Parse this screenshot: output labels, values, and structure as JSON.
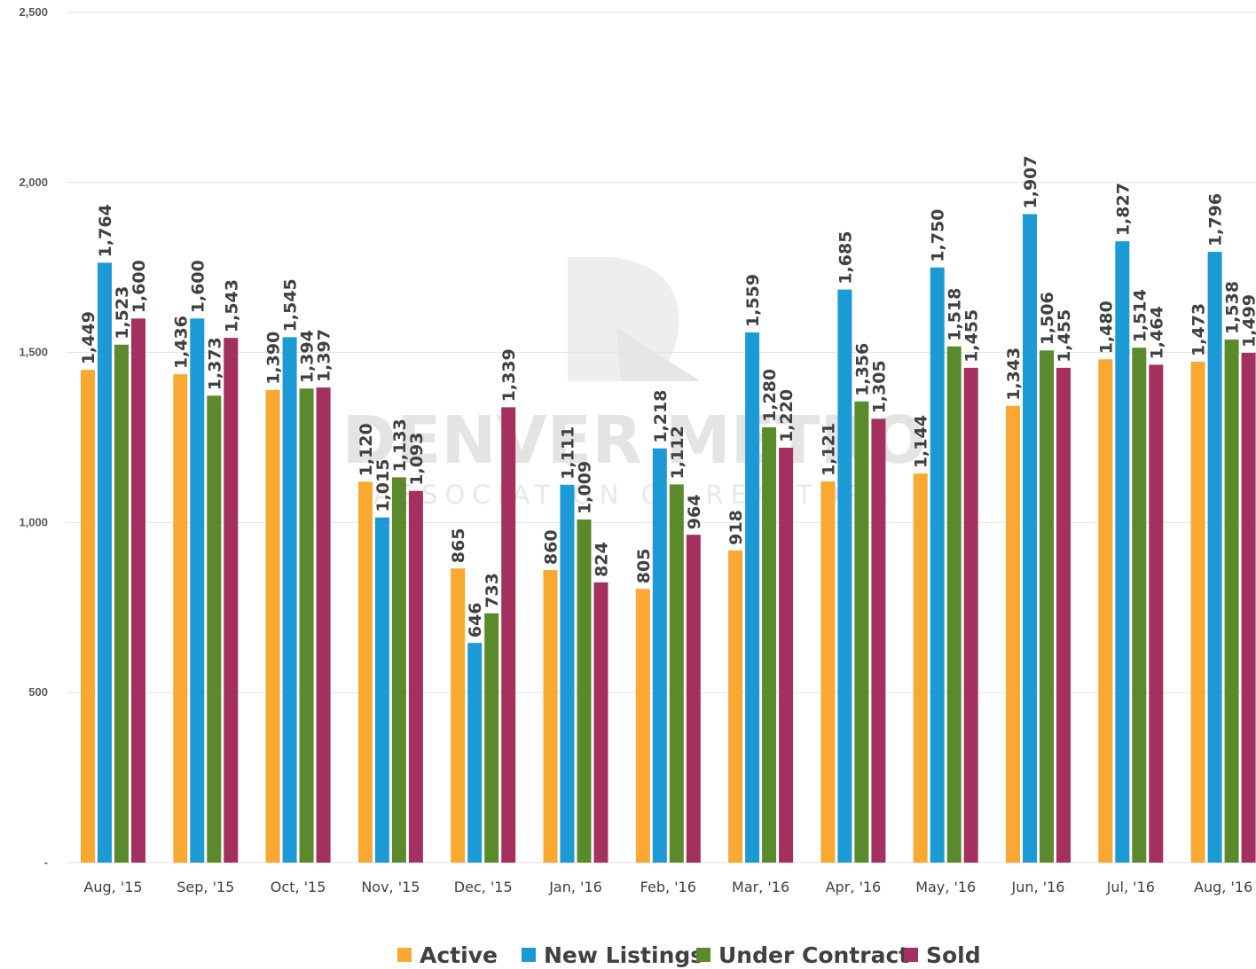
{
  "chart_data": {
    "type": "bar",
    "categories": [
      "Aug, '15",
      "Sep, '15",
      "Oct, '15",
      "Nov, '15",
      "Dec, '15",
      "Jan, '16",
      "Feb, '16",
      "Mar, '16",
      "Apr, '16",
      "May, '16",
      "Jun, '16",
      "Jul, '16",
      "Aug, '16"
    ],
    "series": [
      {
        "name": "Active",
        "color": "#f9a832",
        "values": [
          1449,
          1436,
          1390,
          1120,
          865,
          860,
          805,
          918,
          1121,
          1144,
          1343,
          1480,
          1473
        ]
      },
      {
        "name": "New Listings",
        "color": "#1c9ad6",
        "values": [
          1764,
          1600,
          1545,
          1015,
          646,
          1111,
          1218,
          1559,
          1685,
          1750,
          1907,
          1827,
          1796
        ]
      },
      {
        "name": "Under Contract",
        "color": "#5a8a2b",
        "values": [
          1523,
          1373,
          1394,
          1133,
          733,
          1009,
          1112,
          1280,
          1356,
          1518,
          1506,
          1514,
          1538
        ]
      },
      {
        "name": "Sold",
        "color": "#a3305f",
        "values": [
          1600,
          1543,
          1397,
          1093,
          1339,
          824,
          964,
          1220,
          1305,
          1455,
          1455,
          1464,
          1499
        ]
      }
    ],
    "ylim": [
      0,
      2500
    ],
    "yticks": [
      "-",
      "500",
      "1,000",
      "1,500",
      "2,000",
      "2,500"
    ],
    "grid": true,
    "legend_position": "bottom",
    "title": "",
    "xlabel": "",
    "ylabel": ""
  },
  "watermark": {
    "line1": "DENVER METRO",
    "line2": "ASSOCIATION OF REALTORS"
  }
}
